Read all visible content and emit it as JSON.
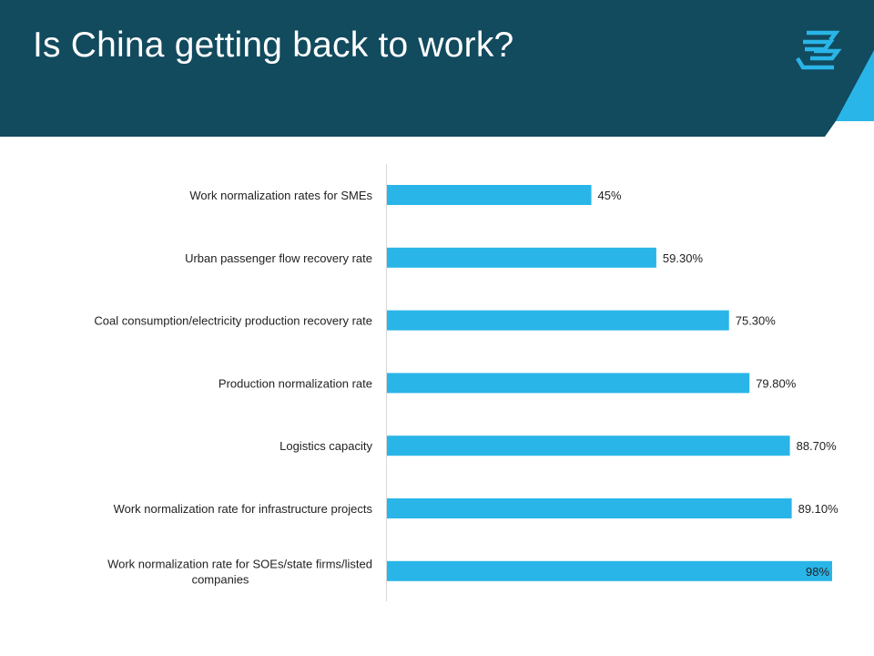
{
  "slide": {
    "title": "Is China getting back to work?",
    "header_color": "#124a5e",
    "accent_color": "#29b5e8",
    "logo_icon": "stacked-chevrons-icon"
  },
  "chart_data": {
    "type": "bar",
    "orientation": "horizontal",
    "title": "",
    "xlabel": "",
    "ylabel": "",
    "xlim": [
      0,
      100
    ],
    "grid": false,
    "bar_color": "#29b5e8",
    "categories": [
      "Work normalization rates for SMEs",
      "Urban passenger flow recovery rate",
      "Coal consumption/electricity production recovery rate",
      "Production normalization rate",
      "Logistics capacity",
      "Work normalization rate for infrastructure projects",
      "Work normalization rate for SOEs/state firms/listed companies"
    ],
    "category_label_lines": [
      [
        "Work normalization rates for SMEs"
      ],
      [
        "Urban passenger flow recovery rate"
      ],
      [
        "Coal consumption/electricity production recovery rate"
      ],
      [
        "Production normalization rate"
      ],
      [
        "Logistics capacity"
      ],
      [
        "Work normalization rate for infrastructure projects"
      ],
      [
        "Work normalization rate for SOEs/state firms/listed",
        "companies"
      ]
    ],
    "values": [
      45,
      59.3,
      75.3,
      79.8,
      88.7,
      89.1,
      98
    ],
    "data_labels": [
      "45%",
      "59.30%",
      "75.30%",
      "79.80%",
      "88.70%",
      "89.10%",
      "98%"
    ]
  }
}
